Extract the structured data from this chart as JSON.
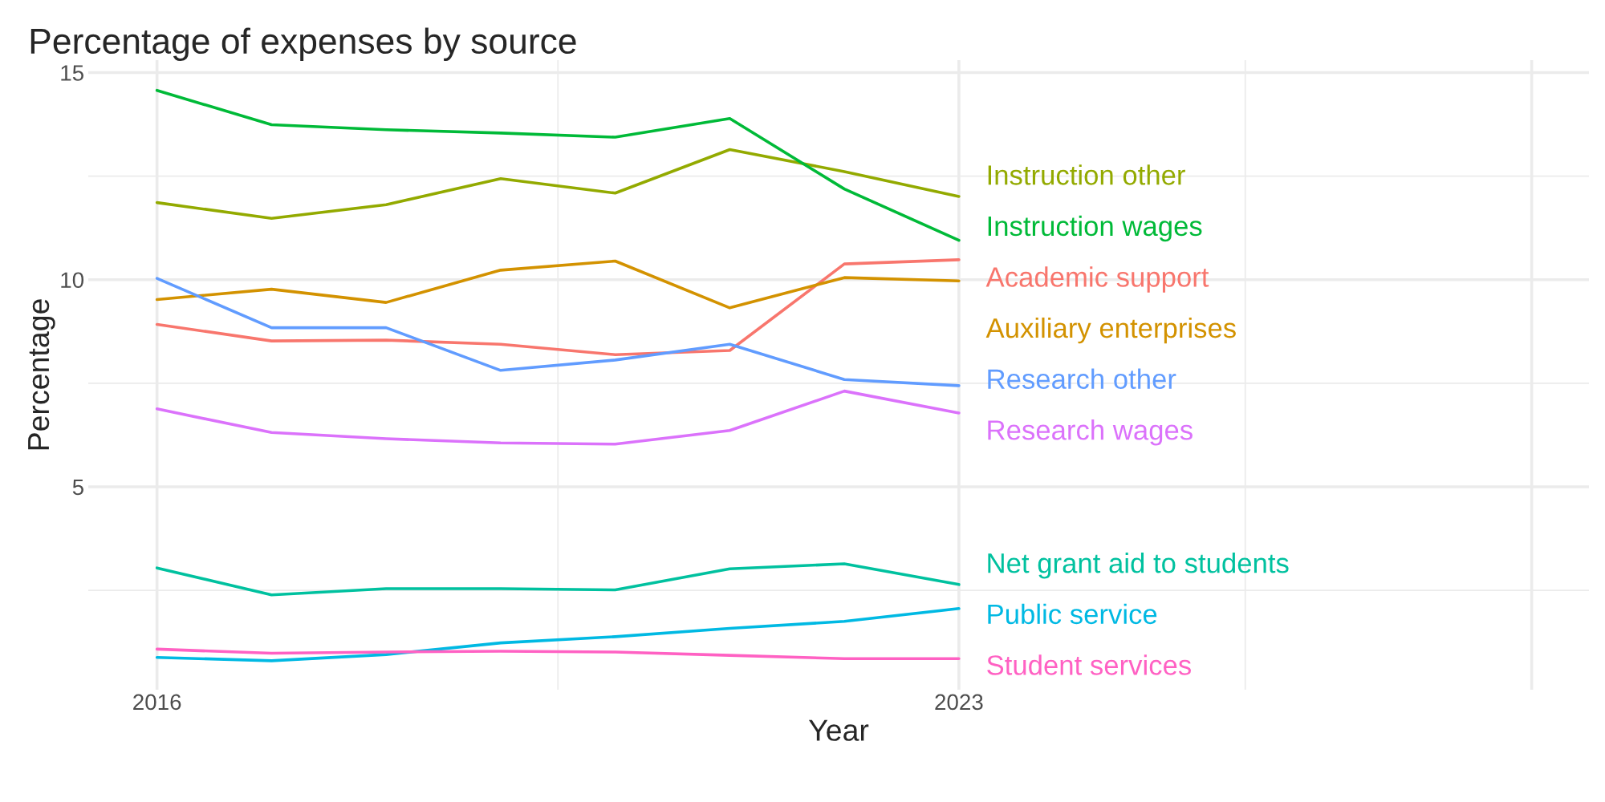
{
  "chart_data": {
    "type": "line",
    "title": "Percentage of expenses by source",
    "xlabel": "Year",
    "ylabel": "Percentage",
    "x": [
      2016,
      2017,
      2018,
      2019,
      2020,
      2021,
      2022,
      2023
    ],
    "xlim": [
      2015.4,
      2028.5
    ],
    "xticks": [
      2016,
      2023,
      {
        "value": 2028,
        "label": null
      }
    ],
    "ylim": [
      0.1,
      15.3
    ],
    "yticks": [
      5,
      10,
      15
    ],
    "grid": true,
    "legend": false,
    "series": [
      {
        "name": "Academic support",
        "color": "#F8766D",
        "values": [
          8.92,
          8.52,
          8.54,
          8.44,
          8.19,
          8.29,
          10.38,
          10.48
        ]
      },
      {
        "name": "Auxiliary enterprises",
        "color": "#D39200",
        "values": [
          9.52,
          9.77,
          9.45,
          10.23,
          10.45,
          9.32,
          10.05,
          9.97
        ]
      },
      {
        "name": "Instruction other",
        "color": "#93AA00",
        "values": [
          11.86,
          11.48,
          11.81,
          12.44,
          12.09,
          13.14,
          12.61,
          12.01
        ]
      },
      {
        "name": "Instruction wages",
        "color": "#00BA38",
        "values": [
          14.57,
          13.74,
          13.62,
          13.54,
          13.44,
          13.89,
          12.19,
          10.95
        ]
      },
      {
        "name": "Net grant aid to students",
        "color": "#00C19F",
        "values": [
          3.04,
          2.39,
          2.54,
          2.54,
          2.51,
          3.02,
          3.14,
          2.64
        ]
      },
      {
        "name": "Public service",
        "color": "#00B9E3",
        "values": [
          0.88,
          0.8,
          0.95,
          1.23,
          1.38,
          1.58,
          1.75,
          2.06
        ]
      },
      {
        "name": "Research other",
        "color": "#619CFF",
        "values": [
          10.03,
          8.84,
          8.84,
          7.81,
          8.06,
          8.44,
          7.59,
          7.44
        ]
      },
      {
        "name": "Research wages",
        "color": "#DB72FB",
        "values": [
          6.88,
          6.31,
          6.16,
          6.06,
          6.03,
          6.36,
          7.31,
          6.78
        ]
      },
      {
        "name": "Student services",
        "color": "#FF61C3",
        "values": [
          1.08,
          0.98,
          1.01,
          1.03,
          1.01,
          0.93,
          0.85,
          0.85
        ]
      }
    ]
  }
}
